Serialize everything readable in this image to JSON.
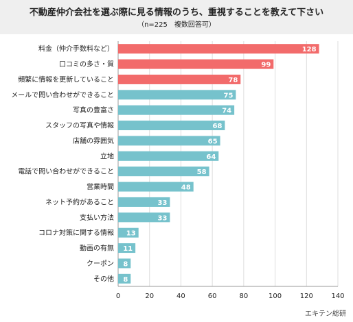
{
  "header": {
    "title": "不動産仲介会社を選ぶ際に見る情報のうち、重視することを教えて下さい",
    "subtitle": "（n=225　複数回答可）"
  },
  "source": "エキテン総研",
  "chart_data": {
    "type": "bar",
    "orientation": "horizontal",
    "title": "不動産仲介会社を選ぶ際に見る情報のうち、重視することを教えて下さい",
    "subtitle": "（n=225　複数回答可）",
    "categories": [
      "料金（仲介手数料など）",
      "口コミの多さ・質",
      "頻繁に情報を更新していること",
      "メールで問い合わせができること",
      "写真の豊富さ",
      "スタッフの写真や情報",
      "店舗の雰囲気",
      "立地",
      "電話で問い合わせができること",
      "営業時間",
      "ネット予約があること",
      "支払い方法",
      "コロナ対策に関する情報",
      "動画の有無",
      "クーポン",
      "その他"
    ],
    "values": [
      128,
      99,
      78,
      75,
      74,
      68,
      65,
      64,
      58,
      48,
      33,
      33,
      13,
      11,
      8,
      8
    ],
    "highlight_count": 3,
    "colors": {
      "highlight": "#f26b6b",
      "normal": "#76c2cc"
    },
    "xlim": [
      0,
      140
    ],
    "xticks": [
      0,
      20,
      40,
      60,
      80,
      100,
      120,
      140
    ],
    "grid": true
  }
}
